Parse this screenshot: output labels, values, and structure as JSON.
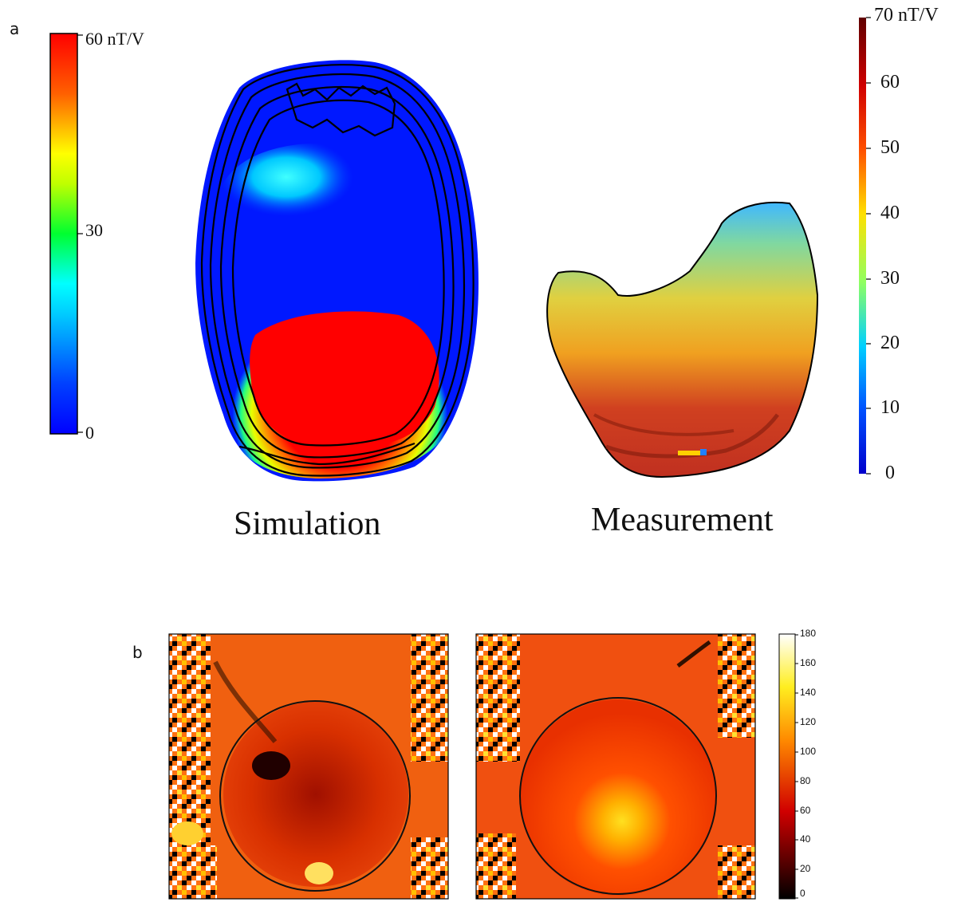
{
  "panels": {
    "a": {
      "label": "a",
      "left_colorbar": {
        "max_label": "60 nT/V",
        "mid_label": "30",
        "min_label": "0"
      },
      "right_colorbar": {
        "ticks": [
          "70 nT/V",
          "60",
          "50",
          "40",
          "30",
          "20",
          "10",
          "0"
        ]
      },
      "captions": {
        "simulation": "Simulation",
        "measurement": "Measurement"
      }
    },
    "b": {
      "label": "b",
      "colorbar": {
        "ticks": [
          "180",
          "160",
          "140",
          "120",
          "100",
          "80",
          "60",
          "40",
          "20",
          "0"
        ]
      }
    }
  },
  "colors": {
    "jet_blue": "#0000ff",
    "jet_cyan": "#00ffff",
    "jet_green": "#00ff00",
    "jet_yellow": "#ffff00",
    "jet_red": "#ff0000",
    "jet_darkred": "#7f0000",
    "hot_black": "#000000",
    "hot_red": "#e03000",
    "hot_yellow": "#ffff20",
    "hot_white": "#ffffff"
  }
}
